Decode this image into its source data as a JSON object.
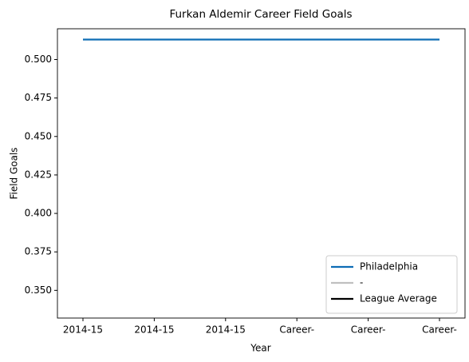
{
  "chart_data": {
    "type": "line",
    "title": "Furkan Aldemir Career Field Goals",
    "x_label": "Year",
    "y_label": "Field Goals",
    "categories": [
      "2014-15",
      "2014-15",
      "2014-15",
      "Career-",
      "Career-",
      "Career-"
    ],
    "series": [
      {
        "name": "Philadelphia",
        "color": "#0d6db5",
        "values": [
          0.513,
          0.513,
          0.513,
          0.513,
          0.513,
          0.513
        ]
      },
      {
        "name": "-",
        "color": "#c0c0c0",
        "values": [
          null,
          null,
          null,
          null,
          null,
          null
        ]
      },
      {
        "name": "League Average",
        "color": "#000000",
        "values": [
          null,
          null,
          null,
          null,
          null,
          null
        ]
      }
    ],
    "ylim": [
      0.332,
      0.52
    ],
    "yticks": [
      {
        "value": 0.35,
        "label": "0.350"
      },
      0.375,
      {
        "value": 0.4,
        "label": "0.400"
      },
      0.425,
      {
        "value": 0.45,
        "label": "0.450"
      },
      0.475,
      {
        "value": 0.5,
        "label": "0.500"
      }
    ],
    "legend": "lower right"
  }
}
